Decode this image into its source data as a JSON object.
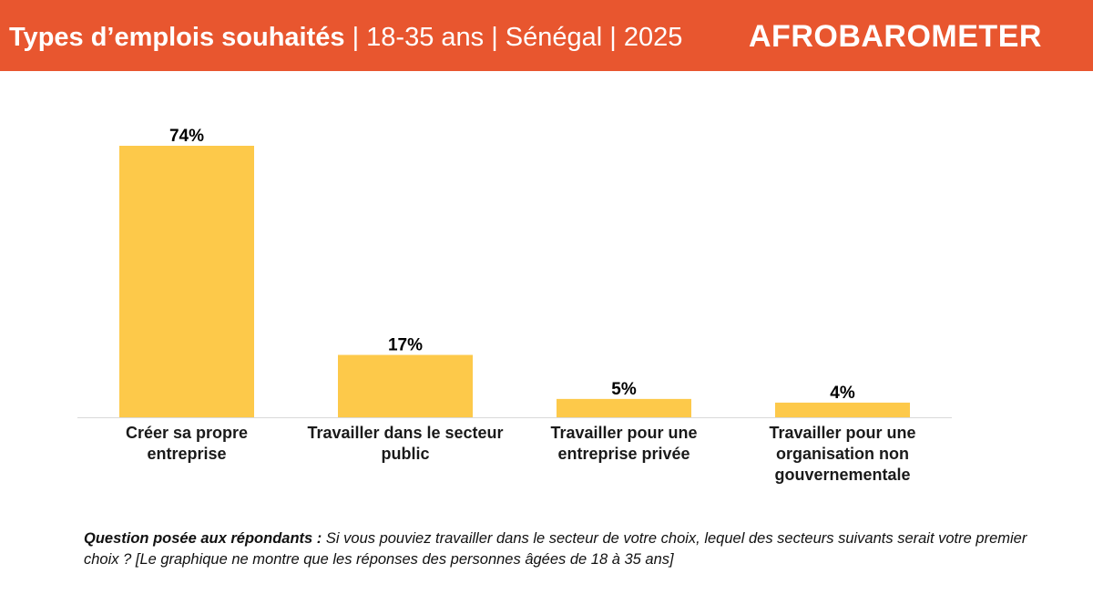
{
  "header": {
    "title_main": "Types d’emplois souhaités",
    "title_details": " | 18-35 ans | Sénégal | 2025",
    "logo_text": "AFROBAROMETER"
  },
  "colors": {
    "header_bg": "#e8562f",
    "bar": "#fdc94a",
    "axis": "#d9d9d9"
  },
  "chart_data": {
    "type": "bar",
    "title": "Types d’emplois souhaités",
    "categories": [
      [
        "Créer sa propre",
        "entreprise"
      ],
      [
        "Travailler dans le secteur",
        "public"
      ],
      [
        "Travailler pour une",
        "entreprise privée"
      ],
      [
        "Travailler pour une",
        "organisation non",
        "gouvernementale"
      ]
    ],
    "values": [
      74,
      17,
      5,
      4
    ],
    "value_labels": [
      "74%",
      "17%",
      "5%",
      "4%"
    ],
    "unit": "%",
    "ylim": [
      0,
      74
    ],
    "grid": false,
    "legend": "none"
  },
  "footnote": {
    "label": "Question posée aux répondants :",
    "text": " Si vous pouviez travailler dans le secteur de votre choix, lequel des secteurs suivants serait votre premier choix ? [Le graphique ne montre que les réponses des personnes âgées de 18 à 35 ans]"
  }
}
